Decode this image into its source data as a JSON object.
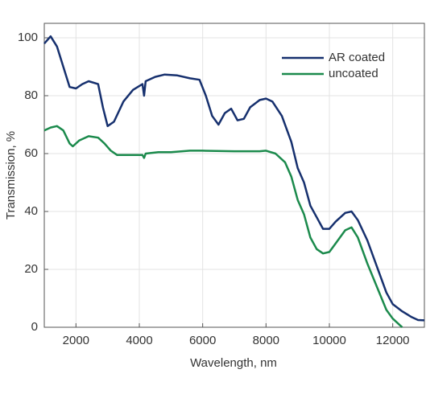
{
  "chart_data": {
    "type": "line",
    "x_label": "Wavelength, nm",
    "y_label": "Transmission, %",
    "xlim": [
      1000,
      13000
    ],
    "ylim": [
      0,
      105
    ],
    "xticks": [
      2000,
      4000,
      6000,
      8000,
      10000,
      12000
    ],
    "yticks": [
      0,
      20,
      40,
      60,
      80,
      100
    ],
    "grid": true,
    "legend": "upper right",
    "series": [
      {
        "name": "AR coated",
        "color": "#16306e",
        "x": [
          1000,
          1200,
          1400,
          1600,
          1800,
          2000,
          2200,
          2400,
          2700,
          2850,
          3000,
          3200,
          3500,
          3800,
          4100,
          4150,
          4200,
          4500,
          4800,
          5200,
          5600,
          5900,
          6100,
          6300,
          6500,
          6700,
          6900,
          7100,
          7300,
          7500,
          7800,
          8000,
          8200,
          8500,
          8800,
          9000,
          9200,
          9400,
          9600,
          9800,
          10000,
          10200,
          10500,
          10700,
          10900,
          11200,
          11500,
          11800,
          12000,
          12300,
          12600,
          12800,
          13000
        ],
        "values": [
          98,
          100.5,
          97,
          90,
          83,
          82.5,
          84,
          85,
          84,
          76,
          69.5,
          71,
          78,
          82,
          84,
          80,
          85,
          86.5,
          87.3,
          87,
          86,
          85.5,
          80,
          73,
          70,
          74,
          75.5,
          71.5,
          72,
          76,
          78.5,
          79,
          78,
          73,
          64,
          55,
          50,
          42,
          38,
          34,
          34,
          36.5,
          39.5,
          40,
          37,
          30,
          21,
          12,
          8,
          5.5,
          3.5,
          2.5,
          2.4
        ]
      },
      {
        "name": "uncoated",
        "color": "#1b8a4c",
        "x": [
          1000,
          1200,
          1400,
          1600,
          1800,
          1900,
          2100,
          2400,
          2700,
          2900,
          3100,
          3300,
          3800,
          4100,
          4150,
          4200,
          4600,
          5000,
          5600,
          6000,
          7000,
          7800,
          8000,
          8300,
          8600,
          8800,
          9000,
          9200,
          9400,
          9600,
          9800,
          10000,
          10200,
          10500,
          10700,
          10900,
          11200,
          11500,
          11800,
          12000,
          12200,
          12300
        ],
        "values": [
          68,
          69,
          69.5,
          68,
          63.5,
          62.5,
          64.5,
          66,
          65.5,
          63.5,
          61,
          59.5,
          59.5,
          59.5,
          58.5,
          60,
          60.5,
          60.5,
          61,
          61,
          60.8,
          60.8,
          61,
          60,
          57,
          52,
          44,
          39,
          31,
          27,
          25.5,
          26,
          29,
          33.5,
          34.5,
          31,
          22,
          14,
          6,
          3,
          1,
          0
        ]
      }
    ]
  }
}
